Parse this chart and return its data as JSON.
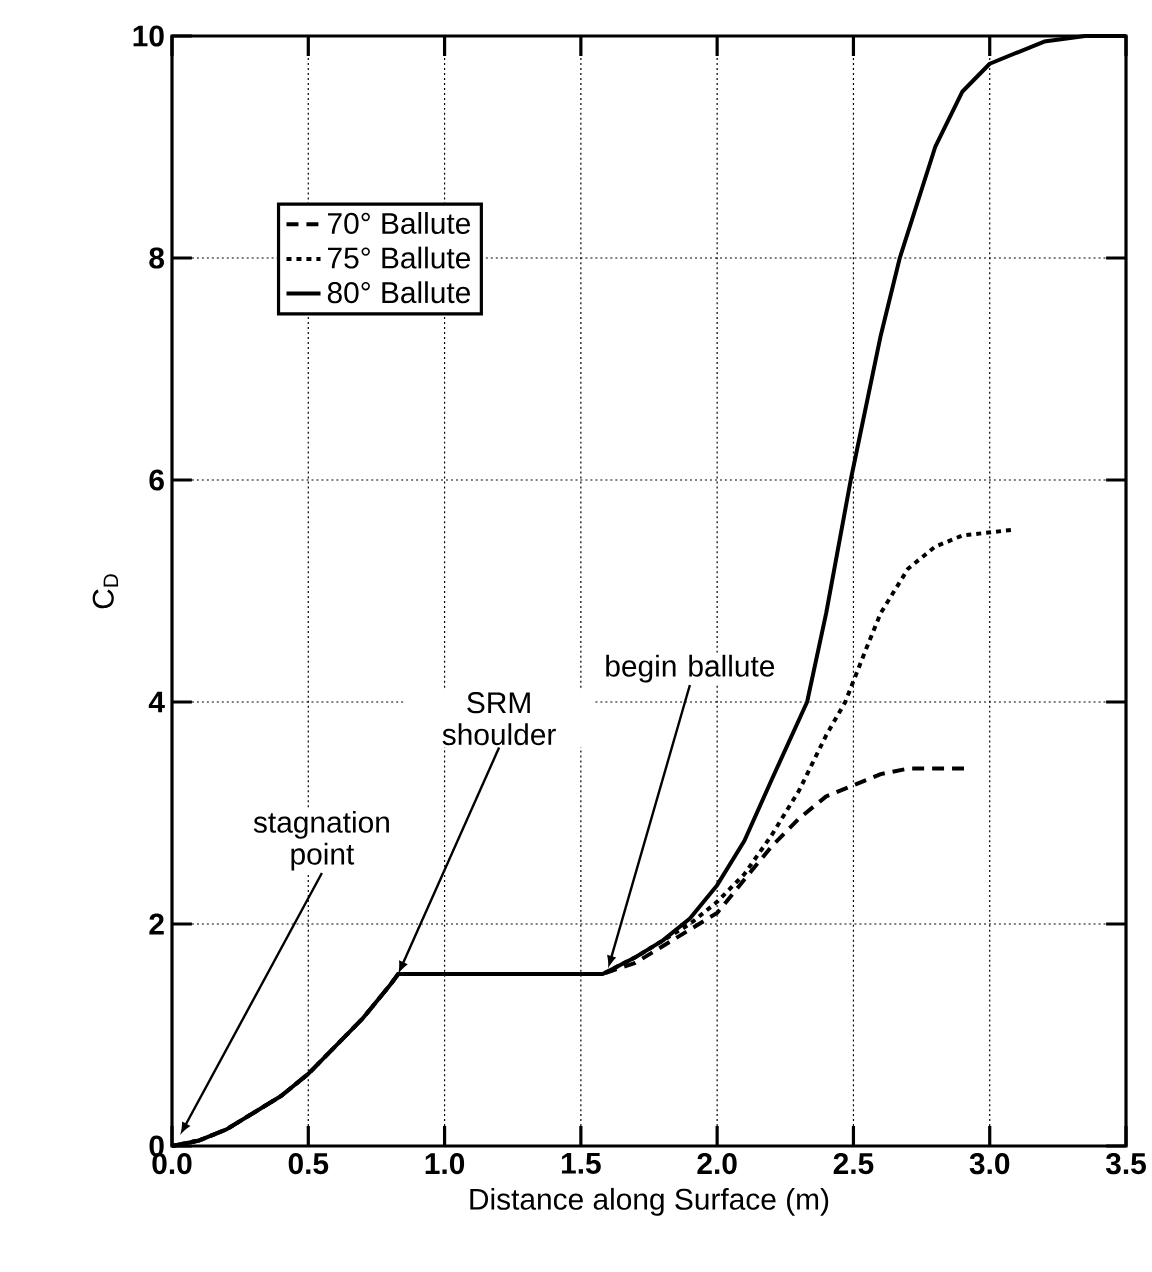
{
  "chart_data": {
    "type": "line",
    "xlabel": "Distance along Surface (m)",
    "ylabel": "C$_{D}$",
    "xlim": [
      0,
      3.5
    ],
    "ylim": [
      0,
      10
    ],
    "xticks": [
      {
        "value": 0,
        "label": "0.0"
      },
      0.5,
      {
        "value": 1,
        "label": "1.0"
      },
      1.5,
      {
        "value": 2,
        "label": "2.0"
      },
      2.5,
      {
        "value": 3,
        "label": "3.0"
      },
      3.5
    ],
    "yticks": [
      0,
      2,
      4,
      6,
      8,
      10
    ],
    "grid": true,
    "legend": "top left",
    "series": [
      {
        "name": "70° Ballute",
        "color": "#000000",
        "line_style": "dashed",
        "x": [
          0,
          0.1,
          0.2,
          0.3,
          0.4,
          0.5,
          0.6,
          0.7,
          0.8,
          0.83,
          1.0,
          1.2,
          1.4,
          1.58,
          1.7,
          1.8,
          1.9,
          2.0,
          2.1,
          2.2,
          2.3,
          2.4,
          2.5,
          2.6,
          2.7,
          2.93
        ],
        "values": [
          0,
          0.05,
          0.15,
          0.3,
          0.45,
          0.65,
          0.9,
          1.15,
          1.45,
          1.55,
          1.55,
          1.55,
          1.55,
          1.55,
          1.65,
          1.8,
          1.95,
          2.1,
          2.4,
          2.7,
          2.95,
          3.15,
          3.25,
          3.35,
          3.4,
          3.4
        ]
      },
      {
        "name": "75° Ballute",
        "color": "#000000",
        "line_style": "dotted",
        "x": [
          0,
          0.1,
          0.2,
          0.3,
          0.4,
          0.5,
          0.6,
          0.7,
          0.8,
          0.83,
          1.0,
          1.2,
          1.4,
          1.58,
          1.7,
          1.8,
          1.9,
          2.0,
          2.1,
          2.2,
          2.3,
          2.4,
          2.47,
          2.55,
          2.6,
          2.7,
          2.8,
          2.9,
          3.08
        ],
        "values": [
          0,
          0.05,
          0.15,
          0.3,
          0.45,
          0.65,
          0.9,
          1.15,
          1.45,
          1.55,
          1.55,
          1.55,
          1.55,
          1.55,
          1.7,
          1.85,
          2.0,
          2.2,
          2.45,
          2.8,
          3.2,
          3.7,
          4,
          4.5,
          4.8,
          5.2,
          5.4,
          5.5,
          5.55
        ]
      },
      {
        "name": "80° Ballute",
        "color": "#000000",
        "line_style": "solid",
        "x": [
          0,
          0.1,
          0.2,
          0.3,
          0.4,
          0.5,
          0.6,
          0.7,
          0.8,
          0.83,
          1.0,
          1.2,
          1.4,
          1.58,
          1.7,
          1.8,
          1.9,
          2.0,
          2.1,
          2.2,
          2.33,
          2.4,
          2.49,
          2.6,
          2.67,
          2.8,
          2.9,
          3.0,
          3.2,
          3.35,
          3.5
        ],
        "values": [
          0,
          0.05,
          0.15,
          0.3,
          0.45,
          0.65,
          0.9,
          1.15,
          1.45,
          1.55,
          1.55,
          1.55,
          1.55,
          1.55,
          1.7,
          1.85,
          2.05,
          2.35,
          2.75,
          3.3,
          4,
          4.8,
          6,
          7.3,
          8,
          9.0,
          9.5,
          9.75,
          9.95,
          10,
          10
        ]
      }
    ],
    "annotations": [
      {
        "text": "stagnation point",
        "x": 0.03,
        "y": 0.1
      },
      {
        "text": "SRM shoulder",
        "x": 0.83,
        "y": 1.55
      },
      {
        "text": "begin ballute",
        "x": 1.6,
        "y": 1.6
      }
    ]
  }
}
